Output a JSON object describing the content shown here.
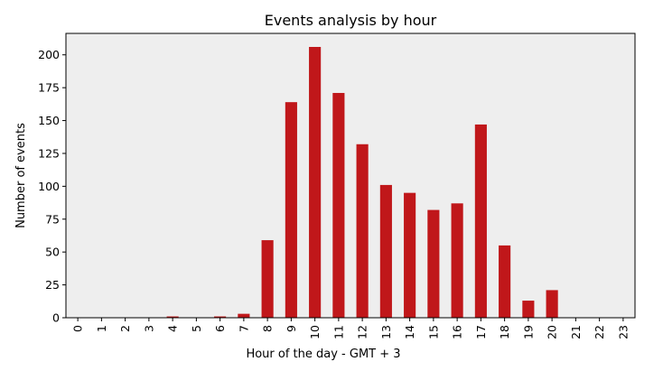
{
  "chart_data": {
    "type": "bar",
    "title": "Events analysis by hour",
    "xlabel": "Hour of the day - GMT + 3",
    "ylabel": "Number of events",
    "categories": [
      "0",
      "1",
      "2",
      "3",
      "4",
      "5",
      "6",
      "7",
      "8",
      "9",
      "10",
      "11",
      "12",
      "13",
      "14",
      "15",
      "16",
      "17",
      "18",
      "19",
      "20",
      "21",
      "22",
      "23"
    ],
    "values": [
      0,
      0,
      0,
      0,
      1,
      0,
      1,
      3,
      59,
      164,
      206,
      171,
      132,
      101,
      95,
      82,
      87,
      147,
      55,
      13,
      21,
      0,
      0,
      0
    ],
    "ylim": [
      0,
      216.3
    ],
    "yticks": [
      0,
      25,
      50,
      75,
      100,
      125,
      150,
      175,
      200
    ],
    "grid": false,
    "legend": "none",
    "colors": {
      "bar": "#c0171a",
      "plot_background": "#eeeeee",
      "axis": "#000000"
    }
  }
}
